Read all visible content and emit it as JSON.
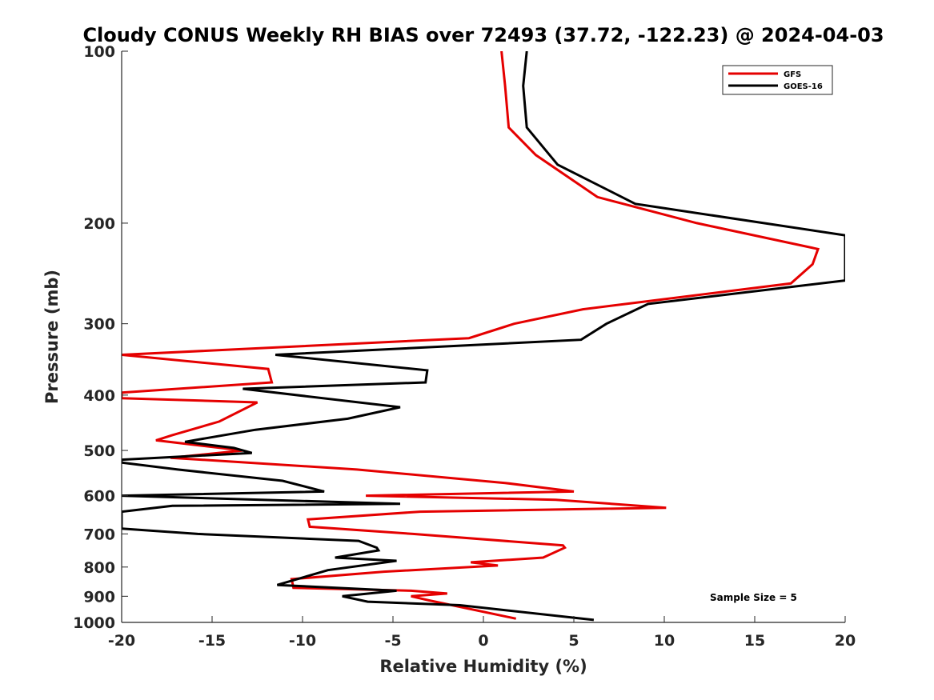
{
  "chart_data": {
    "type": "line",
    "title": "Cloudy CONUS Weekly RH BIAS over 72493 (37.72, -122.23) @ 2024-04-03",
    "xlabel": "Relative Humidity (%)",
    "ylabel": "Pressure (mb)",
    "xlim": [
      -20,
      20
    ],
    "ylim": [
      100,
      1000
    ],
    "yscale": "log",
    "yreversed": true,
    "x_ticks": [
      -20,
      -15,
      -10,
      -5,
      0,
      5,
      10,
      15,
      20
    ],
    "x_tick_labels": [
      "-20",
      "-15",
      "-10",
      "-5",
      "0",
      "5",
      "10",
      "15",
      "20"
    ],
    "y_ticks": [
      100,
      200,
      300,
      400,
      500,
      600,
      700,
      800,
      900,
      1000
    ],
    "y_tick_labels": [
      "100",
      "200",
      "300",
      "400",
      "500",
      "600",
      "700",
      "800",
      "900",
      "1000"
    ],
    "grid": false,
    "legend_position": "top-right",
    "annotation": "Sample Size = 5",
    "series": [
      {
        "name": "GFS",
        "color": "#e50000",
        "x": [
          1.0,
          1.2,
          1.4,
          2.9,
          6.3,
          11.8,
          18.5,
          18.2,
          17.0,
          5.5,
          1.7,
          -0.8,
          -20.0,
          -11.9,
          -11.7,
          -20.0,
          -20.0,
          -12.5,
          -14.6,
          -17.2,
          -18.1,
          -13.3,
          -17.3,
          -7.0,
          1.2,
          5.0,
          -6.5,
          4.0,
          10.1,
          -3.5,
          -9.7,
          -9.6,
          -3.9,
          4.4,
          4.5,
          3.3,
          -0.7,
          0.8,
          -5.5,
          -10.6,
          -10.5,
          -4.0,
          -2.0,
          -4.0,
          -3.0,
          1.8
        ],
        "y": [
          100,
          115,
          136,
          152,
          180,
          200,
          222,
          236,
          255,
          283,
          300,
          318,
          340,
          360,
          380,
          396,
          405,
          412,
          445,
          470,
          480,
          500,
          515,
          540,
          570,
          590,
          600,
          610,
          630,
          640,
          660,
          680,
          700,
          733,
          740,
          770,
          785,
          795,
          815,
          840,
          870,
          880,
          890,
          900,
          915,
          985
        ]
      },
      {
        "name": "GOES-16",
        "color": "#000000",
        "x": [
          2.4,
          2.2,
          2.4,
          4.1,
          8.4,
          20.0,
          20.0,
          9.1,
          6.8,
          5.4,
          -11.5,
          -3.1,
          -3.2,
          -13.3,
          -4.6,
          -7.5,
          -12.6,
          -16.5,
          -13.8,
          -12.8,
          -20.0,
          -20.0,
          -16.9,
          -11.1,
          -8.8,
          -20.0,
          -4.6,
          -17.2,
          -20.0,
          -20.0,
          -15.8,
          -6.9,
          -5.9,
          -5.8,
          -8.2,
          -4.8,
          -8.6,
          -10.3,
          -11.4,
          -4.8,
          -7.8,
          -6.4,
          -1.3,
          6.1
        ],
        "y": [
          100,
          115,
          136,
          158,
          185,
          210,
          252,
          277,
          300,
          320,
          340,
          362,
          380,
          390,
          420,
          440,
          460,
          483,
          495,
          505,
          519,
          525,
          540,
          565,
          590,
          600,
          620,
          625,
          640,
          685,
          700,
          720,
          740,
          748,
          770,
          780,
          810,
          840,
          860,
          880,
          900,
          920,
          933,
          990
        ]
      }
    ]
  }
}
